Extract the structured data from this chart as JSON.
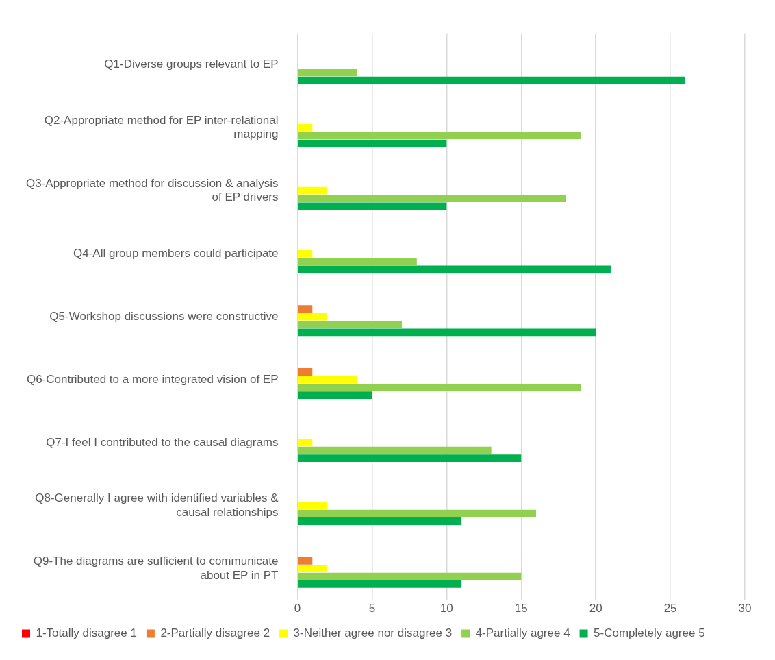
{
  "chart_data": {
    "type": "bar",
    "orientation": "horizontal",
    "categories": [
      "Q1-Diverse groups relevant to EP",
      "Q2-Appropriate method for EP inter-relational mapping",
      "Q3-Appropriate method for discussion & analysis of EP drivers",
      "Q4-All group members could participate",
      "Q5-Workshop discussions were constructive",
      "Q6-Contributed to a more integrated vision of EP",
      "Q7-I feel I contributed to the causal diagrams",
      "Q8-Generally I agree with identified variables & causal relationships",
      "Q9-The diagrams are sufficient to communicate about EP in PT"
    ],
    "series": [
      {
        "name": "1-Totally disagree 1",
        "color": "#ff0000",
        "values": [
          0,
          0,
          0,
          0,
          0,
          0,
          0,
          0,
          0
        ]
      },
      {
        "name": "2-Partially disagree 2",
        "color": "#ed7d31",
        "values": [
          0,
          0,
          0,
          0,
          1,
          1,
          0,
          0,
          1
        ]
      },
      {
        "name": "3-Neither agree nor disagree 3",
        "color": "#ffff00",
        "values": [
          0,
          1,
          2,
          1,
          2,
          4,
          1,
          2,
          2
        ]
      },
      {
        "name": "4-Partially agree 4",
        "color": "#92d050",
        "values": [
          4,
          19,
          18,
          8,
          7,
          19,
          13,
          16,
          15
        ]
      },
      {
        "name": "5-Completely agree 5",
        "color": "#00b050",
        "values": [
          26,
          10,
          10,
          21,
          20,
          5,
          15,
          11,
          11
        ]
      }
    ],
    "xlim": [
      0,
      30
    ],
    "xticks": [
      0,
      5,
      10,
      15,
      20,
      25,
      30
    ],
    "grid": "x",
    "legend": "bottom"
  }
}
